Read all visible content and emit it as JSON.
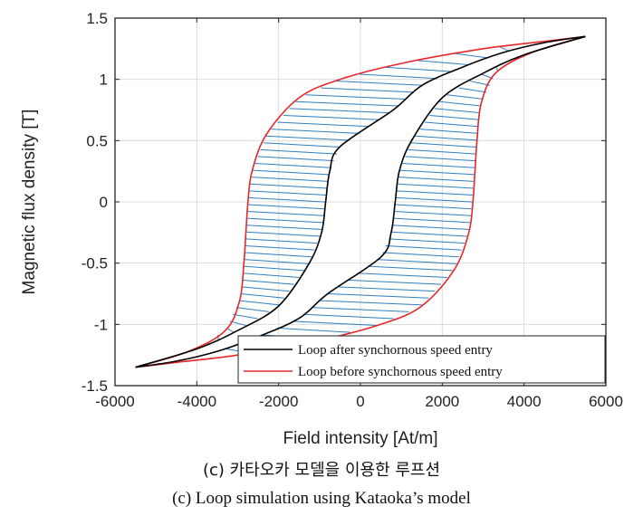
{
  "chart_data": {
    "type": "line",
    "xlabel": "Field intensity [At/m]",
    "ylabel": "Magnetic flux density [T]",
    "xlim": [
      -6000,
      6000
    ],
    "ylim": [
      -1.5,
      1.5
    ],
    "xticks": [
      "-6000",
      "-4000",
      "-2000",
      "0",
      "2000",
      "4000",
      "6000"
    ],
    "yticks": [
      "1.5",
      "1",
      "0.5",
      "0",
      "-0.5",
      "-1",
      "-1.5"
    ],
    "grid": true,
    "legend_position": "bottom-right",
    "series": [
      {
        "name": "Loop after synchornous speed entry",
        "color": "#000000",
        "descending": [
          [
            5500,
            1.35
          ],
          [
            4500,
            1.3
          ],
          [
            3500,
            1.22
          ],
          [
            2500,
            1.1
          ],
          [
            1500,
            0.95
          ],
          [
            800,
            0.75
          ],
          [
            -500,
            0.45
          ],
          [
            -750,
            0.25
          ],
          [
            -850,
            0.0
          ],
          [
            -950,
            -0.25
          ],
          [
            -1250,
            -0.5
          ],
          [
            -2000,
            -0.85
          ],
          [
            -3000,
            -1.05
          ],
          [
            -4000,
            -1.2
          ],
          [
            -5500,
            -1.35
          ]
        ],
        "ascending": [
          [
            -5500,
            -1.35
          ],
          [
            -4500,
            -1.3
          ],
          [
            -3500,
            -1.22
          ],
          [
            -2500,
            -1.1
          ],
          [
            -1500,
            -0.95
          ],
          [
            -800,
            -0.75
          ],
          [
            500,
            -0.45
          ],
          [
            750,
            -0.25
          ],
          [
            850,
            0.0
          ],
          [
            950,
            0.25
          ],
          [
            1250,
            0.5
          ],
          [
            2000,
            0.85
          ],
          [
            3000,
            1.05
          ],
          [
            4000,
            1.2
          ],
          [
            5500,
            1.35
          ]
        ]
      },
      {
        "name": "Loop before synchornous speed entry",
        "color": "#e8262b",
        "descending": [
          [
            5500,
            1.35
          ],
          [
            4500,
            1.31
          ],
          [
            3000,
            1.25
          ],
          [
            1000,
            1.13
          ],
          [
            -500,
            1.0
          ],
          [
            -1500,
            0.85
          ],
          [
            -2300,
            0.55
          ],
          [
            -2650,
            0.25
          ],
          [
            -2750,
            0.0
          ],
          [
            -2800,
            -0.25
          ],
          [
            -2850,
            -0.5
          ],
          [
            -2950,
            -0.8
          ],
          [
            -3300,
            -1.05
          ],
          [
            -4200,
            -1.22
          ],
          [
            -5500,
            -1.35
          ]
        ],
        "ascending": [
          [
            -5500,
            -1.35
          ],
          [
            -4500,
            -1.31
          ],
          [
            -3000,
            -1.25
          ],
          [
            -1000,
            -1.13
          ],
          [
            500,
            -1.0
          ],
          [
            1500,
            -0.85
          ],
          [
            2300,
            -0.55
          ],
          [
            2650,
            -0.25
          ],
          [
            2750,
            0.0
          ],
          [
            2800,
            0.25
          ],
          [
            2850,
            0.5
          ],
          [
            2950,
            0.8
          ],
          [
            3300,
            1.05
          ],
          [
            4200,
            1.22
          ],
          [
            5500,
            1.35
          ]
        ]
      }
    ],
    "hatch_color": "#2f7fc1"
  },
  "captions": {
    "korean": "(c) 카타오카 모델을 이용한 루프션",
    "english": "(c) Loop simulation using Kataoka’s model"
  }
}
